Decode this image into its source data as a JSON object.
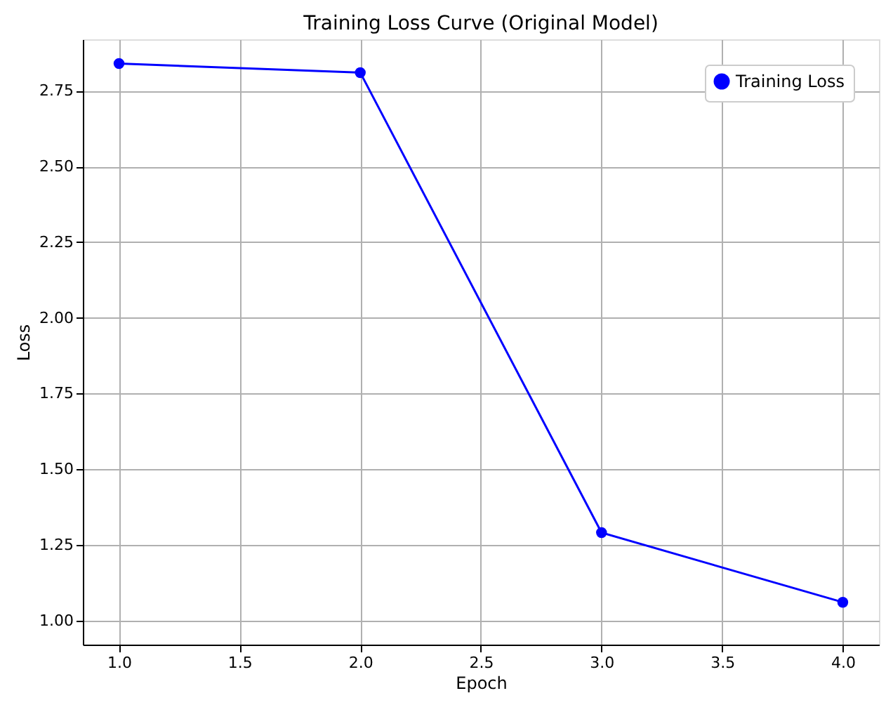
{
  "chart_data": {
    "type": "line",
    "title": "Training Loss Curve (Original Model)",
    "xlabel": "Epoch",
    "ylabel": "Loss",
    "x": [
      1,
      2,
      3,
      4
    ],
    "series": [
      {
        "name": "Training Loss",
        "color": "#0000ff",
        "values": [
          2.84,
          2.81,
          1.29,
          1.06
        ]
      }
    ],
    "xlim": [
      0.85,
      4.15
    ],
    "xticks": [
      {
        "value": 1,
        "label": "1.0"
      },
      {
        "value": 1.5,
        "label": "1.5"
      },
      {
        "value": 2,
        "label": "2.0"
      },
      {
        "value": 2.5,
        "label": "2.5"
      },
      {
        "value": 3,
        "label": "3.0"
      },
      {
        "value": 3.5,
        "label": "3.5"
      },
      {
        "value": 4,
        "label": "4.0"
      }
    ],
    "ylim": [
      0.92,
      2.92
    ],
    "yticks": [
      {
        "value": 1,
        "label": "1.00"
      },
      {
        "value": 1.25,
        "label": "1.25"
      },
      {
        "value": 1.5,
        "label": "1.50"
      },
      {
        "value": 1.75,
        "label": "1.75"
      },
      {
        "value": 2,
        "label": "2.00"
      },
      {
        "value": 2.25,
        "label": "2.25"
      },
      {
        "value": 2.5,
        "label": "2.50"
      },
      {
        "value": 2.75,
        "label": "2.75"
      }
    ],
    "grid": true,
    "legend": "top right",
    "marker": "circle",
    "line_style": "solid"
  }
}
